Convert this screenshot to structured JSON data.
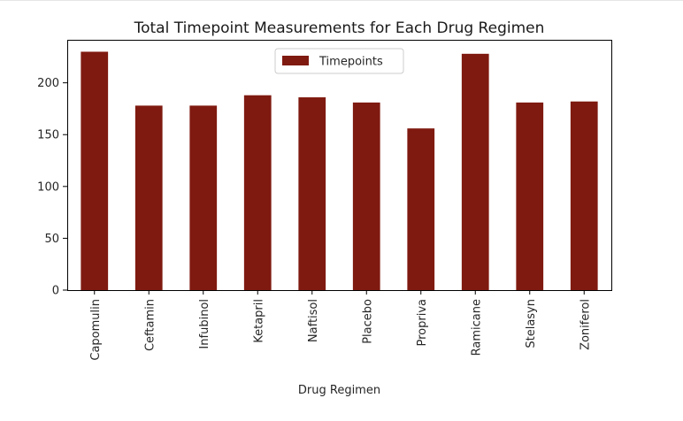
{
  "chart_data": {
    "type": "bar",
    "title": "Total Timepoint Measurements for Each Drug Regimen",
    "xlabel": "Drug Regimen",
    "ylabel": "",
    "categories": [
      "Capomulin",
      "Ceftamin",
      "Infubinol",
      "Ketapril",
      "Naftisol",
      "Placebo",
      "Propriva",
      "Ramicane",
      "Stelasyn",
      "Zoniferol"
    ],
    "series": [
      {
        "name": "Timepoints",
        "values": [
          230,
          178,
          178,
          188,
          186,
          181,
          156,
          228,
          181,
          182
        ]
      }
    ],
    "ylim": [
      0,
      241.5
    ],
    "yticks": [
      0,
      50,
      100,
      150,
      200
    ],
    "legend_position": "top-center",
    "grid": false,
    "bar_color": "#7f1a10"
  }
}
